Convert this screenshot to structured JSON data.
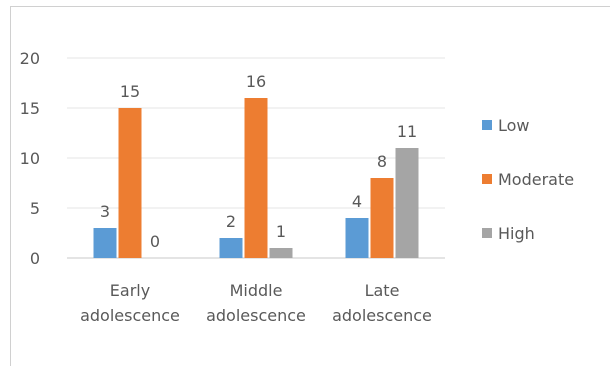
{
  "chart_data": {
    "type": "bar",
    "title": "",
    "xlabel": "",
    "ylabel": "",
    "ylim": [
      0,
      20
    ],
    "yticks": [
      0,
      5,
      10,
      15,
      20
    ],
    "grid": true,
    "legend_position": "right",
    "categories": [
      [
        "Early",
        "adolescence"
      ],
      [
        "Middle",
        "adolescence"
      ],
      [
        "Late",
        "adolescence"
      ]
    ],
    "series": [
      {
        "name": "Low",
        "color": "#5B9BD5",
        "values": [
          3,
          2,
          4
        ]
      },
      {
        "name": "Moderate",
        "color": "#ED7D31",
        "values": [
          15,
          16,
          8
        ]
      },
      {
        "name": "High",
        "color": "#A5A5A5",
        "values": [
          0,
          1,
          11
        ]
      }
    ]
  }
}
